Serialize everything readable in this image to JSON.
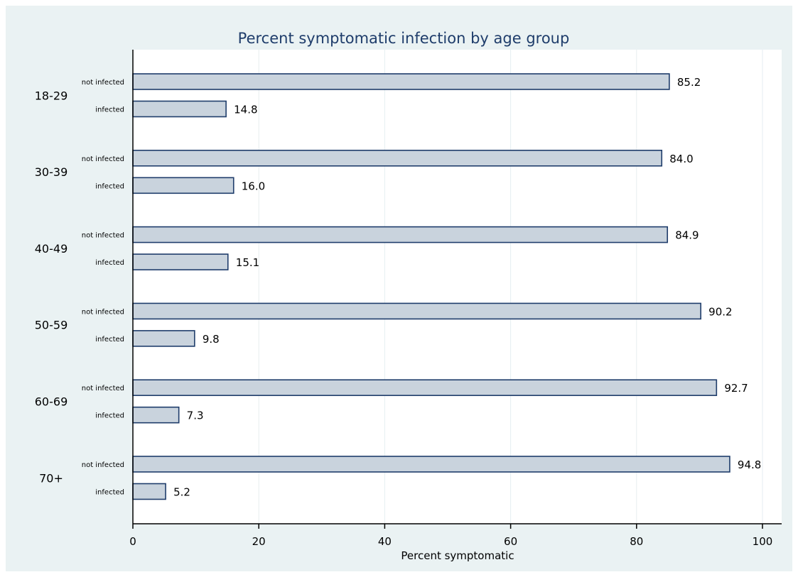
{
  "chart_data": {
    "type": "bar",
    "orientation": "horizontal",
    "title": "Percent symptomatic infection by age group",
    "xlabel": "Percent symptomatic",
    "ylabel": "",
    "xlim": [
      0,
      100
    ],
    "xticks": [
      0,
      20,
      40,
      60,
      80,
      100
    ],
    "grid": true,
    "colors": {
      "bar_fill": "#c9d3dd",
      "bar_stroke": "#1f3d6b",
      "background": "#eaf2f3",
      "plot_background": "#ffffff",
      "title": "#1f3d6b",
      "grid": "#e6eef0"
    },
    "groups": [
      {
        "label": "18-29",
        "bars": [
          {
            "label": "not infected",
            "value": 85.2,
            "value_label": "85.2"
          },
          {
            "label": "infected",
            "value": 14.8,
            "value_label": "14.8"
          }
        ]
      },
      {
        "label": "30-39",
        "bars": [
          {
            "label": "not infected",
            "value": 84.0,
            "value_label": "84.0"
          },
          {
            "label": "infected",
            "value": 16.0,
            "value_label": "16.0"
          }
        ]
      },
      {
        "label": "40-49",
        "bars": [
          {
            "label": "not infected",
            "value": 84.9,
            "value_label": "84.9"
          },
          {
            "label": "infected",
            "value": 15.1,
            "value_label": "15.1"
          }
        ]
      },
      {
        "label": "50-59",
        "bars": [
          {
            "label": "not infected",
            "value": 90.2,
            "value_label": "90.2"
          },
          {
            "label": "infected",
            "value": 9.8,
            "value_label": "9.8"
          }
        ]
      },
      {
        "label": "60-69",
        "bars": [
          {
            "label": "not infected",
            "value": 92.7,
            "value_label": "92.7"
          },
          {
            "label": "infected",
            "value": 7.3,
            "value_label": "7.3"
          }
        ]
      },
      {
        "label": "70+",
        "bars": [
          {
            "label": "not infected",
            "value": 94.8,
            "value_label": "94.8"
          },
          {
            "label": "infected",
            "value": 5.2,
            "value_label": "5.2"
          }
        ]
      }
    ]
  }
}
